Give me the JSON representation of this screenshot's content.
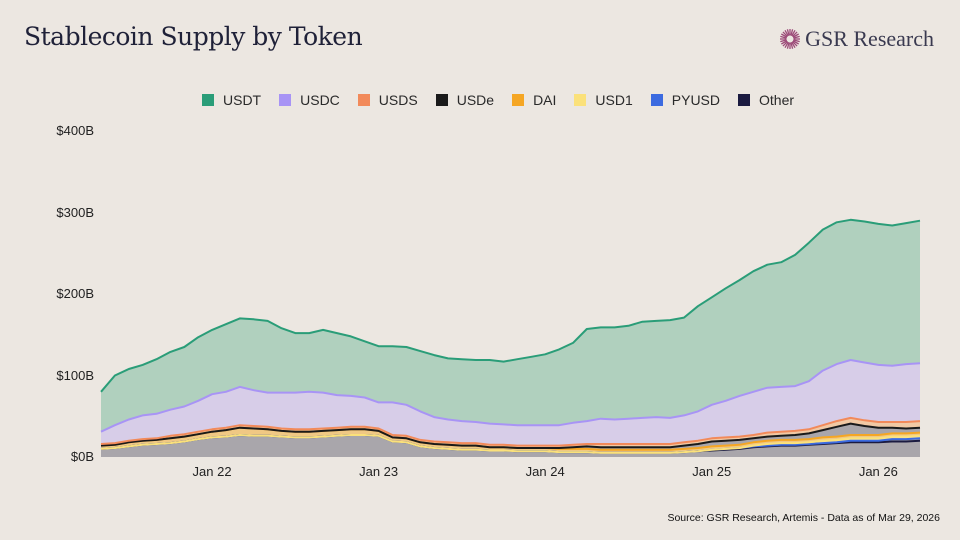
{
  "header": {
    "title": "Stablecoin Supply by Token",
    "logo_text": "GSR Research"
  },
  "footer": {
    "source": "Source: GSR Research, Artemis - Data as of Mar 29, 2026"
  },
  "chart_data": {
    "type": "area",
    "stacked": true,
    "title": "Stablecoin Supply by Token",
    "xlabel": "",
    "ylabel": "",
    "ylim": [
      0,
      400
    ],
    "y_unit": "$B",
    "y_ticks": [
      0,
      100,
      200,
      300,
      400
    ],
    "y_tick_labels": [
      "$0B",
      "$100B",
      "$200B",
      "$300B",
      "$400B"
    ],
    "x_ticks": [
      "2022-01",
      "2023-01",
      "2024-01",
      "2025-01",
      "2026-01"
    ],
    "x_tick_labels": [
      "Jan 22",
      "Jan 23",
      "Jan 24",
      "Jan 25",
      "Jan 26"
    ],
    "x_range": [
      "2021-05",
      "2026-04"
    ],
    "legend_position": "top",
    "grid": false,
    "series_order_bottom_to_top": [
      "Other",
      "PYUSD",
      "USD1",
      "DAI",
      "USDe",
      "USDS",
      "USDC",
      "USDT"
    ],
    "legend": [
      {
        "name": "USDT",
        "color": "#2a9d78"
      },
      {
        "name": "USDC",
        "color": "#a894f5"
      },
      {
        "name": "USDS",
        "color": "#f28a5a"
      },
      {
        "name": "USDe",
        "color": "#1a1a1a"
      },
      {
        "name": "DAI",
        "color": "#f5a623"
      },
      {
        "name": "USD1",
        "color": "#fbe17a"
      },
      {
        "name": "PYUSD",
        "color": "#3c6be0"
      },
      {
        "name": "Other",
        "color": "#1b1b40"
      }
    ],
    "fill_colors": {
      "USDT": "#b0d0be",
      "USDC": "#d7cde8",
      "USDS": "#f1c9a4",
      "USDe": "#a9a6ab",
      "DAI": "#f0c884",
      "USD1": "#f5e3a0",
      "PYUSD": "#a9a6ab",
      "Other": "#a9a6ab"
    },
    "x": [
      "2021-05",
      "2021-06",
      "2021-07",
      "2021-08",
      "2021-09",
      "2021-10",
      "2021-11",
      "2021-12",
      "2022-01",
      "2022-02",
      "2022-03",
      "2022-04",
      "2022-05",
      "2022-06",
      "2022-07",
      "2022-08",
      "2022-09",
      "2022-10",
      "2022-11",
      "2022-12",
      "2023-01",
      "2023-02",
      "2023-03",
      "2023-04",
      "2023-05",
      "2023-06",
      "2023-07",
      "2023-08",
      "2023-09",
      "2023-10",
      "2023-11",
      "2023-12",
      "2024-01",
      "2024-02",
      "2024-03",
      "2024-04",
      "2024-05",
      "2024-06",
      "2024-07",
      "2024-08",
      "2024-09",
      "2024-10",
      "2024-11",
      "2024-12",
      "2025-01",
      "2025-02",
      "2025-03",
      "2025-04",
      "2025-05",
      "2025-06",
      "2025-07",
      "2025-08",
      "2025-09",
      "2025-10",
      "2025-11",
      "2025-12",
      "2026-01",
      "2026-02",
      "2026-03",
      "2026-04"
    ],
    "series": [
      {
        "name": "Other",
        "values": [
          10,
          11,
          13,
          15,
          16,
          17,
          19,
          22,
          24,
          25,
          27,
          26,
          26,
          25,
          24,
          24,
          25,
          26,
          27,
          27,
          26,
          19,
          18,
          13,
          11,
          10,
          9,
          9,
          8,
          8,
          7,
          7,
          7,
          6,
          6,
          6,
          5,
          5,
          5,
          5,
          5,
          5,
          6,
          7,
          8,
          9,
          10,
          12,
          13,
          14,
          14,
          15,
          16,
          17,
          18,
          18,
          18,
          19,
          19,
          20
        ]
      },
      {
        "name": "PYUSD",
        "values": [
          0,
          0,
          0,
          0,
          0,
          0,
          0,
          0,
          0,
          0,
          0,
          0,
          0,
          0,
          0,
          0,
          0,
          0,
          0,
          0,
          0,
          0,
          0,
          0,
          0,
          0,
          0,
          0,
          0,
          0,
          0,
          0,
          0,
          0,
          0,
          0,
          0,
          0,
          0,
          0,
          0,
          0,
          0,
          0,
          1,
          1,
          1,
          1,
          1,
          1,
          1,
          1,
          1,
          1,
          2,
          2,
          2,
          3,
          3,
          3
        ]
      },
      {
        "name": "USD1",
        "values": [
          0,
          0,
          0,
          0,
          0,
          0,
          0,
          0,
          0,
          0,
          0,
          0,
          0,
          0,
          0,
          0,
          0,
          0,
          0,
          0,
          0,
          0,
          0,
          0,
          0,
          0,
          0,
          0,
          0,
          0,
          0,
          0,
          0,
          0,
          0,
          0,
          0,
          0,
          0,
          0,
          0,
          0,
          0,
          0,
          0,
          0,
          0,
          1,
          2,
          2,
          2,
          2,
          3,
          3,
          3,
          3,
          3,
          3,
          3,
          3
        ]
      },
      {
        "name": "DAI",
        "values": [
          4,
          4,
          5,
          5,
          5,
          6,
          6,
          6,
          7,
          8,
          9,
          9,
          8,
          7,
          7,
          7,
          7,
          7,
          7,
          7,
          6,
          5,
          5,
          5,
          5,
          5,
          5,
          5,
          4,
          4,
          4,
          4,
          4,
          4,
          4,
          4,
          4,
          4,
          4,
          4,
          4,
          4,
          4,
          4,
          4,
          4,
          4,
          4,
          4,
          4,
          4,
          4,
          4,
          4,
          4,
          4,
          4,
          4,
          4,
          4
        ]
      },
      {
        "name": "USDe",
        "values": [
          0,
          0,
          0,
          0,
          0,
          0,
          0,
          0,
          0,
          0,
          0,
          0,
          0,
          0,
          0,
          0,
          0,
          0,
          0,
          0,
          0,
          0,
          0,
          0,
          0,
          0,
          0,
          0,
          0,
          0,
          0,
          0,
          0,
          1,
          2,
          3,
          3,
          3,
          3,
          3,
          3,
          3,
          4,
          5,
          6,
          6,
          6,
          5,
          5,
          5,
          6,
          7,
          9,
          12,
          14,
          11,
          9,
          7,
          6,
          6
        ]
      },
      {
        "name": "USDS",
        "values": [
          2,
          2,
          2,
          2,
          2,
          3,
          3,
          3,
          3,
          3,
          3,
          3,
          3,
          3,
          3,
          3,
          3,
          3,
          3,
          3,
          3,
          3,
          3,
          3,
          3,
          3,
          3,
          3,
          3,
          3,
          3,
          3,
          3,
          3,
          3,
          3,
          4,
          4,
          4,
          4,
          4,
          4,
          4,
          4,
          4,
          4,
          4,
          4,
          5,
          5,
          5,
          5,
          6,
          7,
          7,
          7,
          7,
          7,
          8,
          8
        ]
      },
      {
        "name": "USDC",
        "values": [
          15,
          22,
          26,
          29,
          30,
          32,
          34,
          38,
          43,
          44,
          47,
          44,
          42,
          44,
          45,
          46,
          44,
          40,
          38,
          36,
          32,
          40,
          38,
          35,
          30,
          28,
          27,
          26,
          26,
          25,
          25,
          25,
          25,
          25,
          27,
          28,
          31,
          30,
          31,
          32,
          33,
          32,
          33,
          36,
          41,
          45,
          50,
          53,
          55,
          55,
          55,
          59,
          67,
          70,
          71,
          71,
          70,
          69,
          71,
          71
        ]
      },
      {
        "name": "USDT",
        "values": [
          49,
          61,
          62,
          62,
          67,
          71,
          73,
          78,
          79,
          83,
          84,
          87,
          88,
          79,
          73,
          72,
          77,
          76,
          73,
          69,
          69,
          69,
          71,
          74,
          76,
          75,
          76,
          76,
          78,
          77,
          81,
          84,
          87,
          93,
          98,
          113,
          112,
          113,
          114,
          118,
          118,
          120,
          120,
          129,
          132,
          138,
          142,
          148,
          151,
          153,
          161,
          170,
          173,
          174,
          172,
          173,
          173,
          172,
          173,
          175
        ]
      }
    ]
  }
}
